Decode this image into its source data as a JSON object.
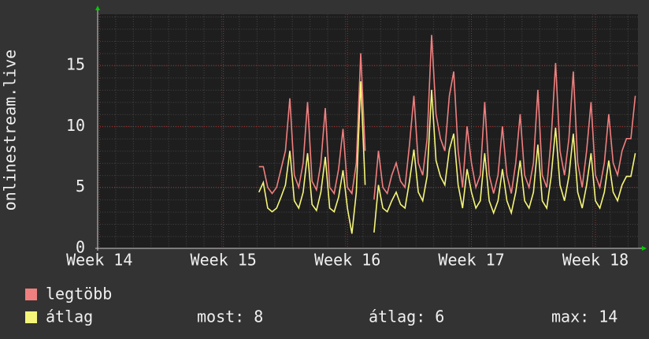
{
  "chart_data": {
    "type": "line",
    "y_label": "onlinestream.live",
    "x": [
      9,
      9.25,
      9.5,
      9.75,
      10,
      10.25,
      10.5,
      10.75,
      11,
      11.25,
      11.5,
      11.75,
      12,
      12.25,
      12.5,
      12.75,
      13,
      13.25,
      13.5,
      13.75,
      14,
      14.25,
      14.5,
      14.75,
      15,
      15.25,
      15.5,
      15.75,
      16,
      16.25,
      16.5,
      16.75,
      17,
      17.25,
      17.5,
      17.75,
      18,
      18.25,
      18.5,
      18.75,
      19,
      19.25,
      19.5,
      19.75,
      20,
      20.25,
      20.5,
      20.75,
      21,
      21.25,
      21.5,
      21.75,
      22,
      22.25,
      22.5,
      22.75,
      23,
      23.25,
      23.5,
      23.75,
      24,
      24.25,
      24.5,
      24.75,
      25,
      25.25,
      25.5,
      25.75,
      26,
      26.25,
      26.5,
      26.75,
      27,
      27.25,
      27.5,
      27.75,
      28,
      28.25,
      28.5,
      28.75,
      29,
      29.25,
      29.5,
      29.75,
      30,
      30.25
    ],
    "series": [
      {
        "name": "legtöbb",
        "color": "#f07f7f",
        "values": [
          6.7,
          6.7,
          5,
          4.5,
          5,
          6.5,
          8,
          12.3,
          6,
          5,
          7,
          12,
          5.5,
          4.8,
          7,
          11.5,
          5,
          4.5,
          6.5,
          9.8,
          5,
          4.5,
          7,
          16,
          8,
          null,
          4,
          8,
          5,
          4.5,
          6,
          7,
          5.5,
          5,
          8.5,
          12.5,
          7,
          6,
          9,
          17.5,
          11,
          9,
          8,
          12.5,
          14.5,
          8,
          5,
          10,
          7,
          5,
          6,
          12,
          6,
          4.5,
          6,
          10,
          6,
          4.5,
          7,
          11,
          6,
          5,
          7,
          13,
          6,
          5,
          9,
          15.2,
          8,
          6,
          9,
          14.5,
          7,
          5,
          8,
          12,
          6,
          5,
          7,
          11,
          7,
          6,
          8,
          9,
          9,
          12.5
        ]
      },
      {
        "name": "átlag",
        "color": "#f5f57a",
        "values": [
          4.6,
          5.4,
          3.3,
          3,
          3.3,
          4.2,
          5.2,
          8,
          3.9,
          3.3,
          4.6,
          7.8,
          3.6,
          3.1,
          4.6,
          7.5,
          3.3,
          3,
          4.2,
          6.4,
          3.3,
          1.2,
          4.6,
          13.7,
          5.2,
          null,
          1.3,
          5.2,
          3.3,
          3,
          3.9,
          4.6,
          3.6,
          3.3,
          5.5,
          8.1,
          4.6,
          3.9,
          5.9,
          13,
          7.2,
          5.9,
          5.2,
          8.1,
          9.4,
          5.2,
          3.3,
          6.5,
          4.6,
          3.3,
          3.9,
          7.8,
          3.9,
          2.9,
          3.9,
          6.5,
          3.9,
          2.9,
          4.6,
          7.2,
          3.9,
          3.3,
          4.6,
          8.5,
          3.9,
          3.3,
          5.9,
          9.9,
          5.2,
          3.9,
          5.9,
          9.4,
          4.6,
          3.3,
          5.2,
          7.8,
          3.9,
          3.3,
          4.6,
          7.2,
          4.6,
          3.9,
          5.2,
          5.9,
          5.9,
          7.8
        ]
      }
    ],
    "legend_stats": [
      "most: 8",
      "átlag: 6",
      "max: 14"
    ],
    "xlim": [
      -0.1,
      30.4
    ],
    "xticks": [
      {
        "value": 0,
        "label": "Week 14"
      },
      {
        "value": 7,
        "label": "Week 15"
      },
      {
        "value": 14,
        "label": "Week 16"
      },
      {
        "value": 21,
        "label": "Week 17"
      },
      {
        "value": 28,
        "label": "Week 18"
      }
    ],
    "ylim": [
      0,
      19.2
    ],
    "yticks": [
      0,
      5,
      10,
      15
    ],
    "grid": true
  }
}
